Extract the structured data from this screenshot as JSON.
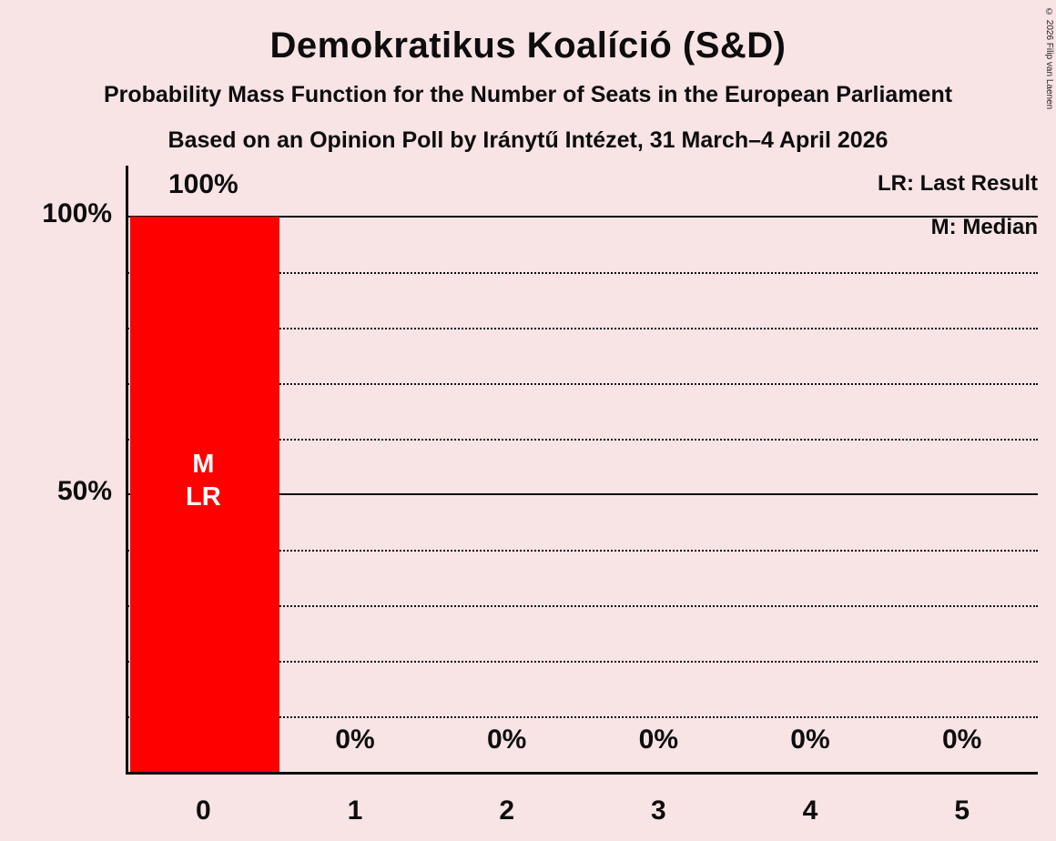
{
  "header": {
    "title": "Demokratikus Koalíció (S&D)",
    "subtitle1": "Probability Mass Function for the Number of Seats in the European Parliament",
    "subtitle2": "Based on an Opinion Poll by Iránytű Intézet, 31 March–4 April 2026"
  },
  "legend": {
    "last_result": "LR: Last Result",
    "median": "M: Median"
  },
  "copyright": "© 2026 Filip van Laenen",
  "colors": {
    "background": "#f8e3e5",
    "bar": "#ff0000",
    "text": "#0d0d0d",
    "bar_annotation_text": "#ffffff"
  },
  "chart_data": {
    "type": "bar",
    "title": "Demokratikus Koalíció (S&D)",
    "xlabel": "",
    "ylabel": "",
    "categories": [
      "0",
      "1",
      "2",
      "3",
      "4",
      "5"
    ],
    "values": [
      100,
      0,
      0,
      0,
      0,
      0
    ],
    "value_labels": [
      "100%",
      "0%",
      "0%",
      "0%",
      "0%",
      "0%"
    ],
    "ylim": [
      0,
      100
    ],
    "y_ticks": [
      {
        "value": 100,
        "label": "100%"
      },
      {
        "value": 50,
        "label": "50%"
      }
    ],
    "solid_gridlines": [
      50,
      100
    ],
    "dotted_gridlines": [
      10,
      20,
      30,
      40,
      60,
      70,
      80,
      90
    ],
    "bar_color": "#ff0000",
    "annotations": [
      {
        "category_index": 0,
        "lines": [
          "M",
          "LR"
        ]
      }
    ],
    "median_seats": 0,
    "last_result_seats": 0,
    "legend_position": "top-right",
    "grid": "horizontal-only"
  }
}
